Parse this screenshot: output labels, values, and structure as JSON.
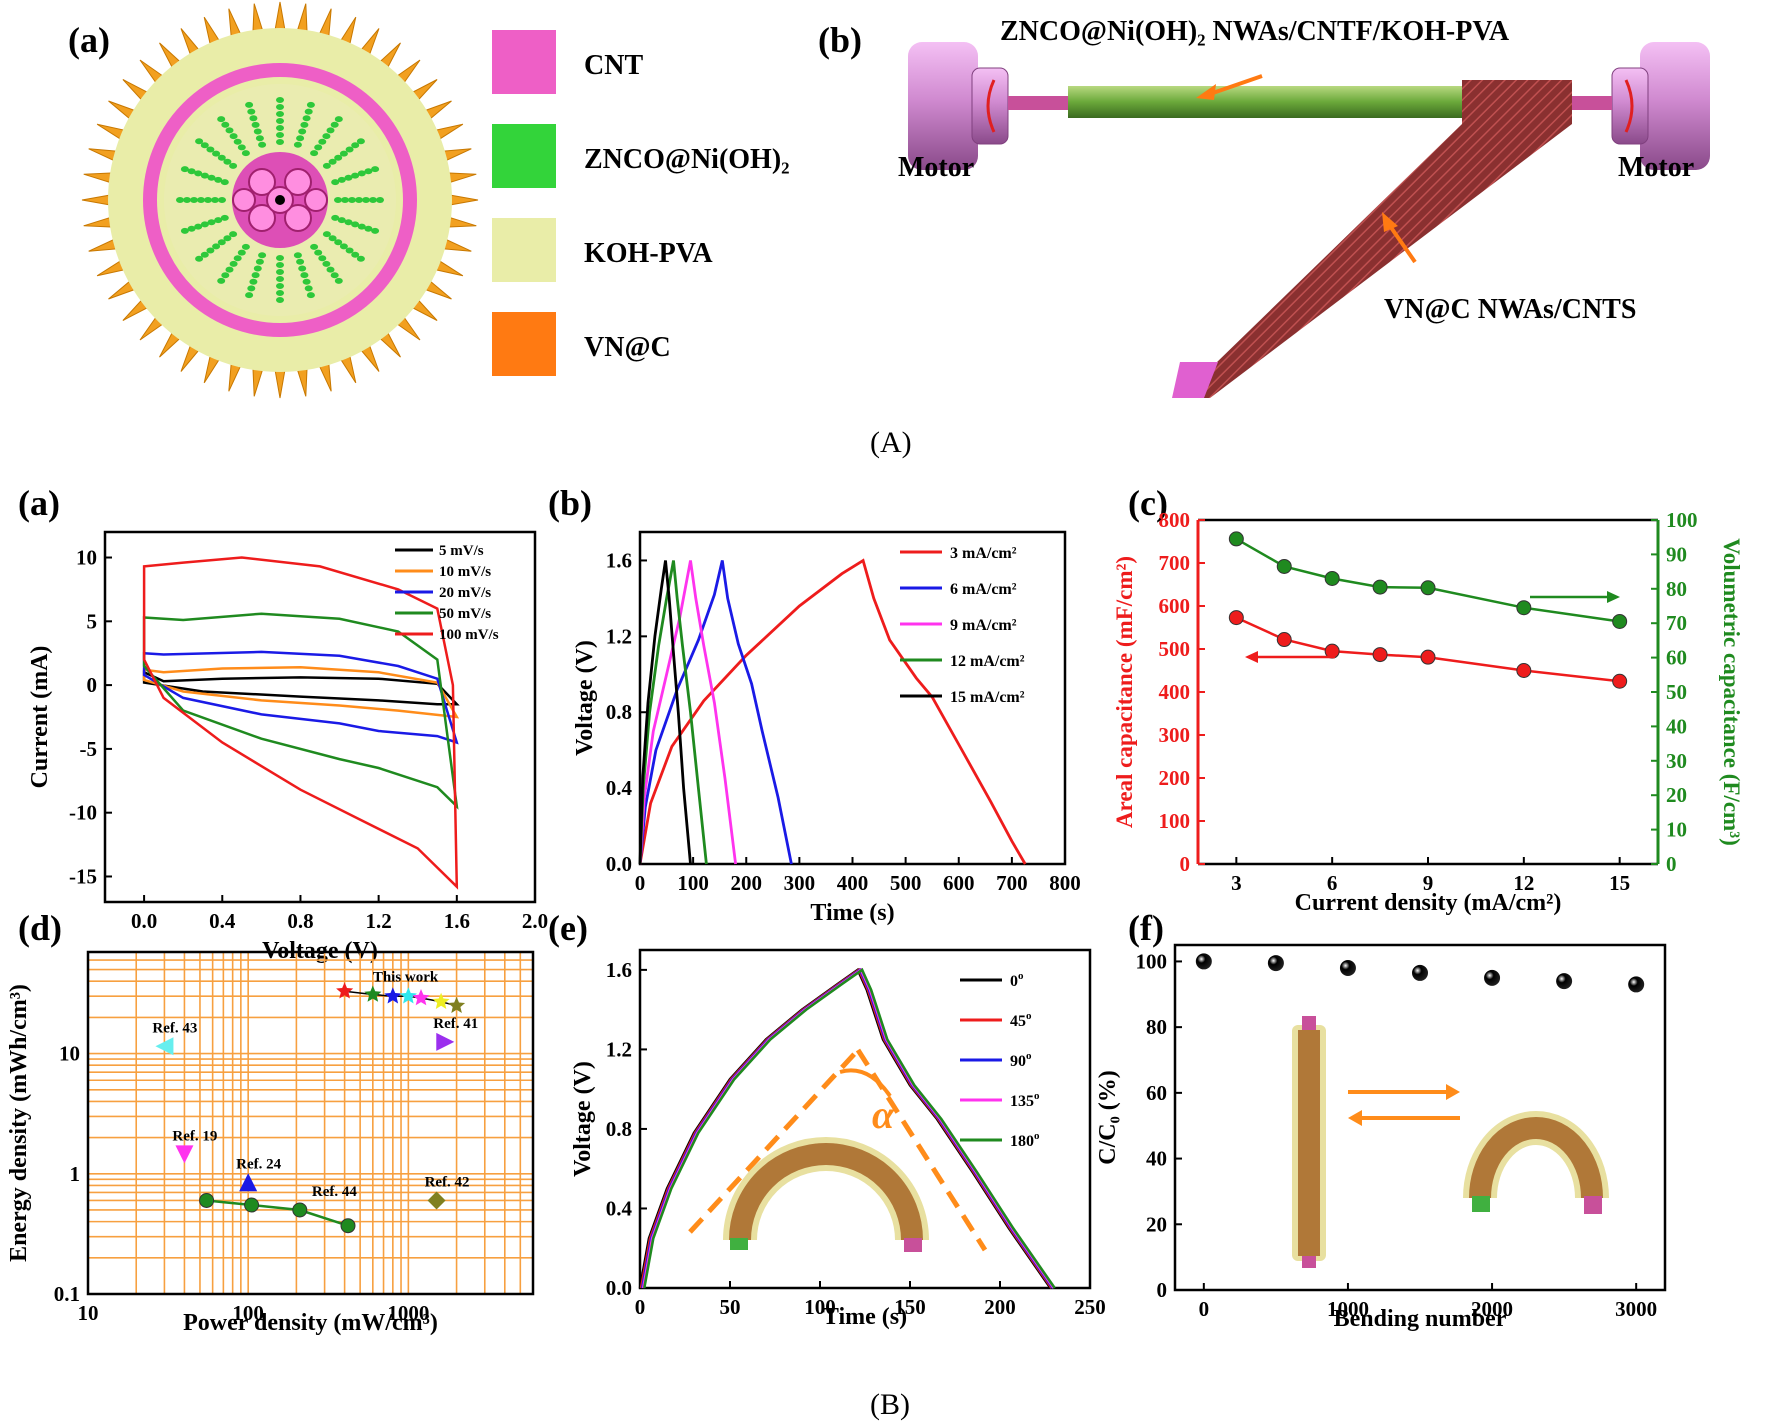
{
  "captions": {
    "a": "(A)",
    "b": "(B)"
  },
  "schematic": {
    "panel_a_label": "(a)",
    "panel_b_label": "(b)",
    "legend": [
      {
        "label": "CNT",
        "color": "#ee5fc6"
      },
      {
        "label": "ZNCO@Ni(OH)₂",
        "color": "#33d43a"
      },
      {
        "label": "KOH-PVA",
        "color": "#e9eda8"
      },
      {
        "label": "VN@C",
        "color": "#ff7a12"
      }
    ],
    "label_top": "ZNCO@Ni(OH)₂ NWAs/CNTF/KOH-PVA",
    "label_bottom": "VN@C NWAs/CNTS",
    "motor_left": "Motor",
    "motor_right": "Motor"
  },
  "colors": {
    "red": "#ee1c1c",
    "green": "#1f8a1f",
    "orange_grid": "#f7a040",
    "blue": "#1a1ae6",
    "black": "#000000",
    "orange": "#ff8c1a",
    "magenta": "#ff33ee"
  },
  "chart_data": [
    {
      "id": "cv",
      "label": "(a)",
      "type": "line",
      "xlabel": "Voltage (V)",
      "ylabel": "Current (mA)",
      "xlim": [
        -0.2,
        2.0
      ],
      "ylim": [
        -17,
        12
      ],
      "xticks": [
        "0.0",
        "0.4",
        "0.8",
        "1.2",
        "1.6",
        "2.0"
      ],
      "yticks": [
        "-15",
        "-10",
        "-5",
        "0",
        "5",
        "10"
      ],
      "series": [
        {
          "name": "5 mV/s",
          "color": "#000000",
          "upper": [
            [
              0,
              1.0
            ],
            [
              0.1,
              0.3
            ],
            [
              0.4,
              0.5
            ],
            [
              0.8,
              0.6
            ],
            [
              1.2,
              0.5
            ],
            [
              1.5,
              0.1
            ],
            [
              1.6,
              -1.5
            ]
          ],
          "lower": [
            [
              0,
              0.2
            ],
            [
              0.3,
              -0.5
            ],
            [
              0.8,
              -0.9
            ],
            [
              1.2,
              -1.2
            ],
            [
              1.5,
              -1.5
            ],
            [
              1.6,
              -1.5
            ]
          ]
        },
        {
          "name": "10 mV/s",
          "color": "#ff8c1a",
          "upper": [
            [
              0,
              1.2
            ],
            [
              0.1,
              1.0
            ],
            [
              0.4,
              1.3
            ],
            [
              0.8,
              1.4
            ],
            [
              1.2,
              1.0
            ],
            [
              1.5,
              0.2
            ],
            [
              1.6,
              -2.5
            ]
          ],
          "lower": [
            [
              0,
              0.4
            ],
            [
              0.2,
              -0.5
            ],
            [
              0.6,
              -1.2
            ],
            [
              1.0,
              -1.6
            ],
            [
              1.3,
              -2.0
            ],
            [
              1.6,
              -2.5
            ]
          ]
        },
        {
          "name": "20 mV/s",
          "color": "#1a1ae6",
          "upper": [
            [
              0,
              2.5
            ],
            [
              0.1,
              2.4
            ],
            [
              0.6,
              2.6
            ],
            [
              1.0,
              2.3
            ],
            [
              1.3,
              1.5
            ],
            [
              1.5,
              0.5
            ],
            [
              1.6,
              -4.5
            ]
          ],
          "lower": [
            [
              0,
              0.8
            ],
            [
              0.2,
              -1.0
            ],
            [
              0.6,
              -2.3
            ],
            [
              1.0,
              -3.0
            ],
            [
              1.2,
              -3.6
            ],
            [
              1.5,
              -4.0
            ],
            [
              1.6,
              -4.5
            ]
          ]
        },
        {
          "name": "50 mV/s",
          "color": "#1f8a1f",
          "upper": [
            [
              0,
              5.3
            ],
            [
              0.2,
              5.1
            ],
            [
              0.6,
              5.6
            ],
            [
              1.0,
              5.2
            ],
            [
              1.3,
              4.2
            ],
            [
              1.5,
              2.0
            ],
            [
              1.6,
              -9.5
            ]
          ],
          "lower": [
            [
              0,
              1.5
            ],
            [
              0.2,
              -2.0
            ],
            [
              0.6,
              -4.2
            ],
            [
              1.0,
              -5.8
            ],
            [
              1.2,
              -6.5
            ],
            [
              1.5,
              -8.0
            ],
            [
              1.6,
              -9.5
            ]
          ]
        },
        {
          "name": "100 mV/s",
          "color": "#ee1c1c",
          "upper": [
            [
              0,
              9.3
            ],
            [
              0.2,
              9.6
            ],
            [
              0.5,
              10.0
            ],
            [
              0.9,
              9.3
            ],
            [
              1.3,
              7.5
            ],
            [
              1.5,
              6.0
            ],
            [
              1.58,
              0
            ],
            [
              1.6,
              -15.8
            ]
          ],
          "lower": [
            [
              0,
              2.0
            ],
            [
              0.1,
              -1.0
            ],
            [
              0.4,
              -4.5
            ],
            [
              0.8,
              -8.2
            ],
            [
              1.1,
              -10.5
            ],
            [
              1.4,
              -12.8
            ],
            [
              1.6,
              -15.8
            ]
          ]
        }
      ]
    },
    {
      "id": "gcd",
      "label": "(b)",
      "type": "line",
      "xlabel": "Time (s)",
      "ylabel": "Voltage (V)",
      "xlim": [
        0,
        800
      ],
      "ylim": [
        0,
        1.75
      ],
      "xticks": [
        "0",
        "100",
        "200",
        "300",
        "400",
        "500",
        "600",
        "700",
        "800"
      ],
      "yticks": [
        "0.0",
        "0.4",
        "0.8",
        "1.2",
        "1.6"
      ],
      "series": [
        {
          "name": "3 mA/cm²",
          "color": "#ee1c1c",
          "points": [
            [
              0,
              0
            ],
            [
              20,
              0.32
            ],
            [
              60,
              0.62
            ],
            [
              120,
              0.86
            ],
            [
              200,
              1.1
            ],
            [
              300,
              1.36
            ],
            [
              380,
              1.53
            ],
            [
              420,
              1.6
            ],
            [
              440,
              1.4
            ],
            [
              470,
              1.18
            ],
            [
              520,
              0.98
            ],
            [
              550,
              0.88
            ],
            [
              600,
              0.63
            ],
            [
              660,
              0.33
            ],
            [
              700,
              0.12
            ],
            [
              725,
              0
            ]
          ]
        },
        {
          "name": "6 mA/cm²",
          "color": "#1a1ae6",
          "points": [
            [
              0,
              0
            ],
            [
              10,
              0.3
            ],
            [
              30,
              0.6
            ],
            [
              70,
              0.92
            ],
            [
              110,
              1.18
            ],
            [
              140,
              1.42
            ],
            [
              155,
              1.6
            ],
            [
              165,
              1.4
            ],
            [
              185,
              1.16
            ],
            [
              210,
              0.95
            ],
            [
              230,
              0.7
            ],
            [
              260,
              0.35
            ],
            [
              285,
              0
            ]
          ]
        },
        {
          "name": "9 mA/cm²",
          "color": "#ff33ee",
          "points": [
            [
              0,
              0
            ],
            [
              8,
              0.35
            ],
            [
              25,
              0.7
            ],
            [
              50,
              1.0
            ],
            [
              75,
              1.3
            ],
            [
              95,
              1.6
            ],
            [
              105,
              1.4
            ],
            [
              120,
              1.15
            ],
            [
              140,
              0.85
            ],
            [
              160,
              0.45
            ],
            [
              180,
              0
            ]
          ]
        },
        {
          "name": "12 mA/cm²",
          "color": "#1f8a1f",
          "points": [
            [
              0,
              0
            ],
            [
              6,
              0.4
            ],
            [
              18,
              0.8
            ],
            [
              35,
              1.15
            ],
            [
              50,
              1.4
            ],
            [
              63,
              1.6
            ],
            [
              70,
              1.4
            ],
            [
              80,
              1.15
            ],
            [
              95,
              0.8
            ],
            [
              110,
              0.4
            ],
            [
              125,
              0
            ]
          ]
        },
        {
          "name": "15 mA/cm²",
          "color": "#000000",
          "points": [
            [
              0,
              0
            ],
            [
              5,
              0.45
            ],
            [
              15,
              0.85
            ],
            [
              28,
              1.2
            ],
            [
              40,
              1.45
            ],
            [
              48,
              1.6
            ],
            [
              55,
              1.4
            ],
            [
              62,
              1.15
            ],
            [
              72,
              0.8
            ],
            [
              82,
              0.4
            ],
            [
              95,
              0
            ]
          ]
        }
      ]
    },
    {
      "id": "cap",
      "label": "(c)",
      "type": "scatter",
      "xlabel": "Current density (mA/cm²)",
      "ylabel_left": "Areal capacitance (mF/cm²)",
      "ylabel_right": "Volumetric capacitance (F/cm³)",
      "xlim": [
        1.8,
        16.2
      ],
      "ylim_left": [
        0,
        800
      ],
      "ylim_right": [
        0,
        100
      ],
      "xticks": [
        "3",
        "6",
        "9",
        "12",
        "15"
      ],
      "yticks_left": [
        "0",
        "100",
        "200",
        "300",
        "400",
        "500",
        "600",
        "700",
        "800"
      ],
      "yticks_right": [
        "0",
        "10",
        "20",
        "30",
        "40",
        "50",
        "60",
        "70",
        "80",
        "90",
        "100"
      ],
      "x": [
        3,
        4.5,
        6,
        7.5,
        9,
        12,
        15
      ],
      "series": [
        {
          "name": "Areal",
          "axis": "left",
          "color": "#ee1c1c",
          "values": [
            573,
            522,
            495,
            487,
            481,
            450,
            425
          ]
        },
        {
          "name": "Volumetric",
          "axis": "right",
          "color": "#1f8a1f",
          "values": [
            94.5,
            86.5,
            83,
            80.5,
            80.3,
            74.5,
            70.5
          ]
        }
      ]
    },
    {
      "id": "ragone",
      "label": "(d)",
      "type": "scatter",
      "xlabel": "Power density (mW/cm³)",
      "ylabel": "Energy density (mWh/cm³)",
      "xlim": [
        10,
        6000
      ],
      "ylim": [
        0.1,
        70
      ],
      "scale": "log",
      "xticks": [
        "10",
        "100",
        "1000"
      ],
      "yticks": [
        "0.1",
        "1",
        "10"
      ],
      "this_work": {
        "label": "This work",
        "points": [
          [
            400,
            33
          ],
          [
            600,
            31
          ],
          [
            800,
            30
          ],
          [
            1000,
            30
          ],
          [
            1200,
            29
          ],
          [
            1600,
            27
          ],
          [
            2000,
            25
          ]
        ],
        "colors": [
          "#ee1c1c",
          "#1f8a1f",
          "#1a1ae6",
          "#2ee8ee",
          "#ff33ee",
          "#eeee22",
          "#808020"
        ]
      },
      "refs": [
        {
          "label": "Ref. 43",
          "x": 30,
          "y": 11.5,
          "color": "#66eeee",
          "marker": "tri-left"
        },
        {
          "label": "Ref. 41",
          "x": 1700,
          "y": 12.5,
          "color": "#9b2fee",
          "marker": "tri-right"
        },
        {
          "label": "Ref. 19",
          "x": 40,
          "y": 1.45,
          "color": "#ff33ee",
          "marker": "tri-down"
        },
        {
          "label": "Ref. 24",
          "x": 100,
          "y": 0.85,
          "color": "#1a1ae6",
          "marker": "tri-up"
        },
        {
          "label": "Ref. 42",
          "x": 1500,
          "y": 0.6,
          "color": "#808020",
          "marker": "diamond"
        }
      ],
      "ref44": {
        "label": "Ref. 44",
        "color": "#1f8a1f",
        "points": [
          [
            55,
            0.6
          ],
          [
            105,
            0.55
          ],
          [
            210,
            0.5
          ],
          [
            420,
            0.37
          ]
        ]
      }
    },
    {
      "id": "bend_gcd",
      "label": "(e)",
      "type": "line",
      "xlabel": "Time (s)",
      "ylabel": "Voltage (V)",
      "xlim": [
        0,
        250
      ],
      "ylim": [
        0,
        1.7
      ],
      "xticks": [
        "0",
        "50",
        "100",
        "150",
        "200",
        "250"
      ],
      "yticks": [
        "0.0",
        "0.4",
        "0.8",
        "1.2",
        "1.6"
      ],
      "angle_label": "α",
      "series": [
        {
          "name": "0",
          "color": "#000000"
        },
        {
          "name": "45",
          "color": "#ee1c1c"
        },
        {
          "name": "90",
          "color": "#1a1ae6"
        },
        {
          "name": "135",
          "color": "#ff33ee"
        },
        {
          "name": "180",
          "color": "#1f8a1f"
        }
      ],
      "curve": [
        [
          0,
          0
        ],
        [
          5,
          0.25
        ],
        [
          15,
          0.5
        ],
        [
          30,
          0.78
        ],
        [
          50,
          1.05
        ],
        [
          70,
          1.25
        ],
        [
          90,
          1.4
        ],
        [
          110,
          1.53
        ],
        [
          121,
          1.6
        ],
        [
          126,
          1.5
        ],
        [
          135,
          1.25
        ],
        [
          150,
          1.02
        ],
        [
          165,
          0.85
        ],
        [
          185,
          0.58
        ],
        [
          205,
          0.3
        ],
        [
          228,
          0
        ]
      ]
    },
    {
      "id": "retention",
      "label": "(f)",
      "type": "scatter",
      "xlabel": "Bending number",
      "ylabel": "C/C₀ (%)",
      "xlim": [
        -200,
        3200
      ],
      "ylim": [
        0,
        105
      ],
      "xticks": [
        "0",
        "1000",
        "2000",
        "3000"
      ],
      "yticks": [
        "0",
        "20",
        "40",
        "60",
        "80",
        "100"
      ],
      "x": [
        0,
        500,
        1000,
        1500,
        2000,
        2500,
        3000
      ],
      "values": [
        100,
        99.5,
        98,
        96.5,
        95,
        94,
        93
      ],
      "colors": [
        "#ee1c1c",
        "#33d43a",
        "#1a1ae6",
        "#2ee8ee",
        "#ff33ee",
        "#eeee22",
        "#808020"
      ]
    }
  ]
}
